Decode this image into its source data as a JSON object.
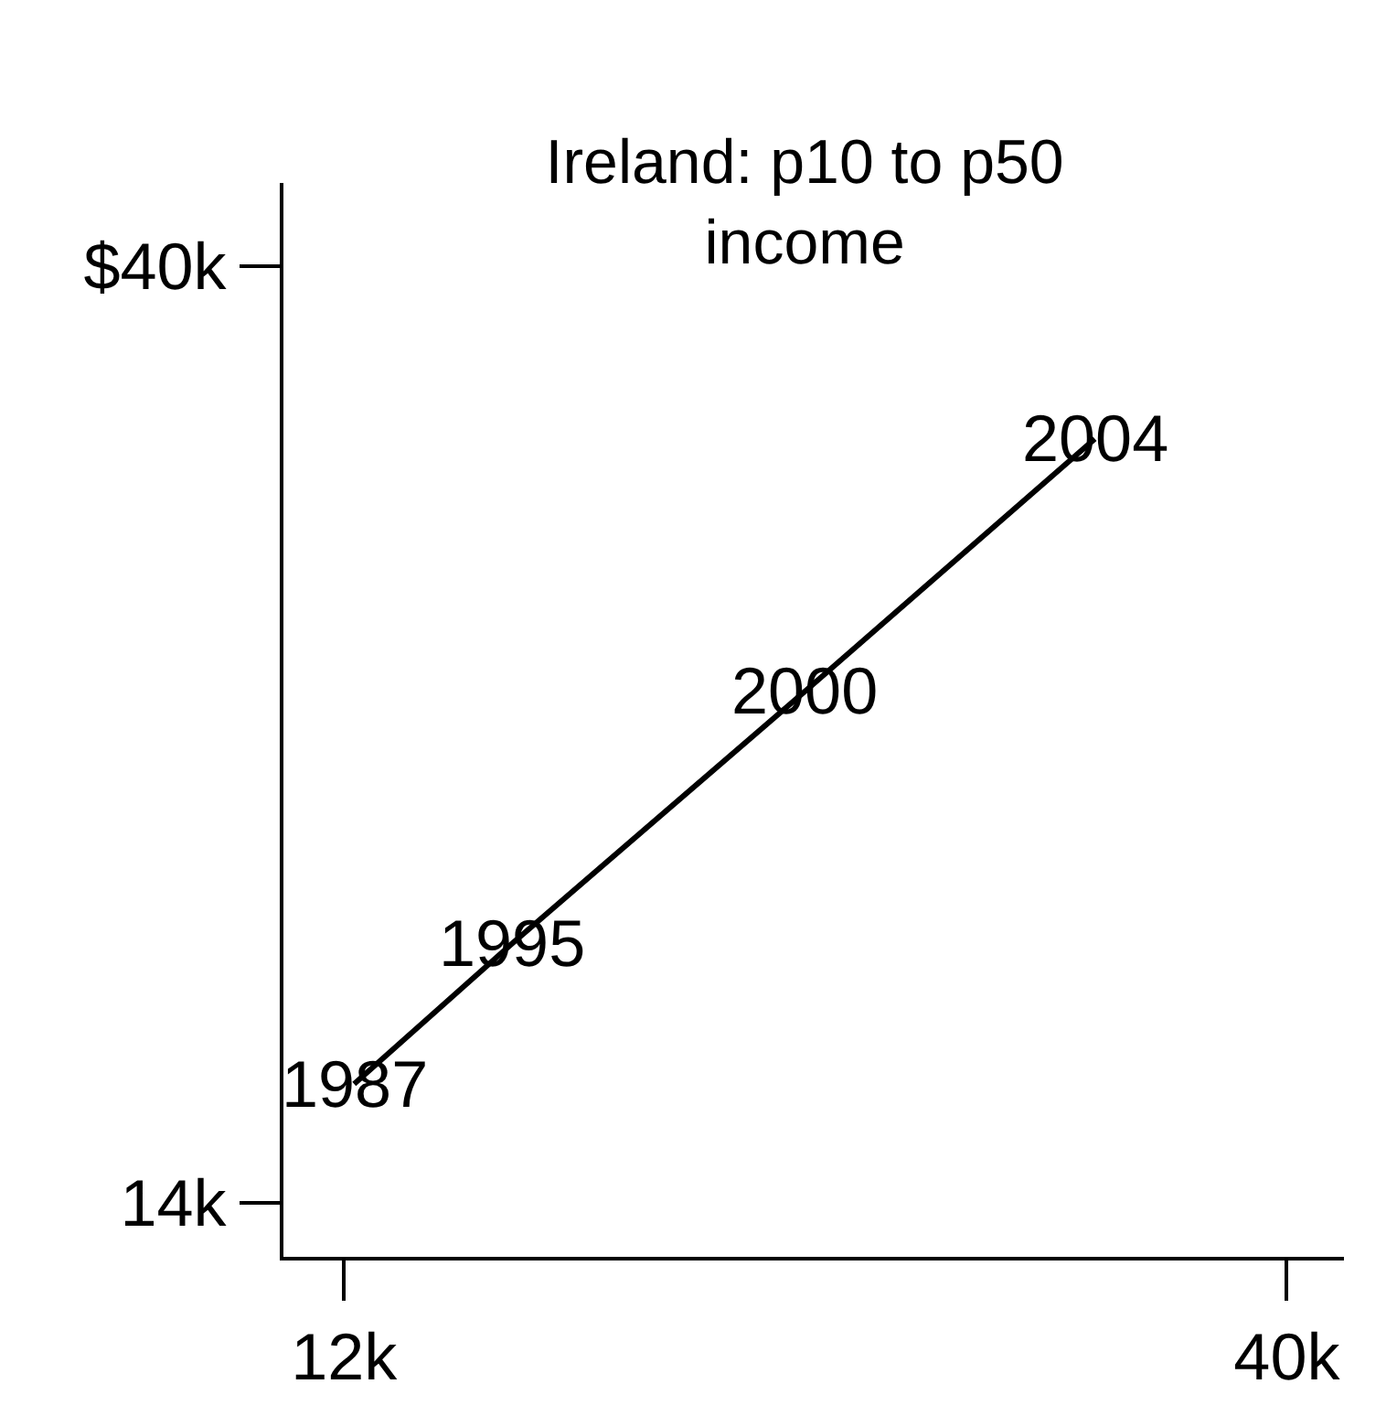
{
  "chart_data": {
    "type": "line",
    "title": "Ireland: p10 to p50 income",
    "x": [
      12.3,
      17,
      25.7,
      34.3
    ],
    "series": [
      {
        "color": "#000000",
        "values": [
          17.3,
          21.2,
          28.2,
          35.2
        ]
      }
    ],
    "xlim": [
      10.2,
      41.7
    ],
    "xticks": [
      {
        "value": 12,
        "label": "12k"
      },
      {
        "value": 40,
        "label": "40k"
      }
    ],
    "ylim": [
      12.5,
      42.3
    ],
    "yticks": [
      {
        "value": 14,
        "label": "14k"
      },
      {
        "value": 40,
        "label": "$40k"
      }
    ],
    "annotations": [
      {
        "text": "1987",
        "x": 12.3,
        "y": 17.3
      },
      {
        "text": "1995",
        "x": 17,
        "y": 21.2
      },
      {
        "text": "2000",
        "x": 25.7,
        "y": 28.2
      },
      {
        "text": "2004",
        "x": 34.3,
        "y": 35.2
      }
    ],
    "marker": "none"
  }
}
